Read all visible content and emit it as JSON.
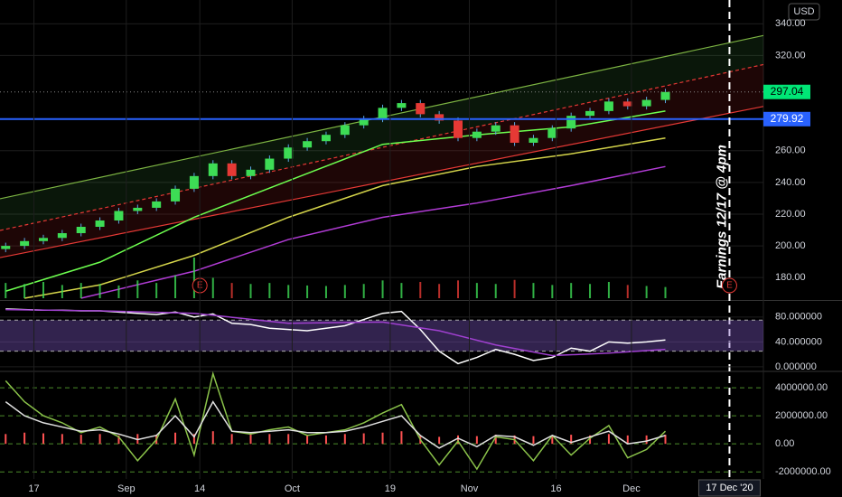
{
  "chart_data": [
    {
      "type": "candlestick",
      "currency": "USD",
      "xlim": [
        -0.3,
        40.2
      ],
      "ylim": [
        167,
        355
      ],
      "yticks": [
        {
          "value": 340,
          "label": "340.00"
        },
        {
          "value": 320,
          "label": "320.00"
        },
        {
          "value": 260,
          "label": "260.00"
        },
        {
          "value": 240,
          "label": "240.00"
        },
        {
          "value": 220,
          "label": "220.00"
        },
        {
          "value": 200,
          "label": "200.00"
        },
        {
          "value": 180,
          "label": "180.00"
        }
      ],
      "x": [
        0,
        1,
        2,
        3,
        4,
        5,
        6,
        7,
        8,
        9,
        10,
        11,
        12,
        13,
        14,
        15,
        16,
        17,
        18,
        19,
        20,
        21,
        22,
        23,
        24,
        25,
        26,
        27,
        28,
        29,
        30,
        31,
        32,
        33,
        34,
        35
      ],
      "open": [
        198,
        200,
        203,
        205,
        208,
        212,
        216,
        222,
        224,
        228,
        236,
        244,
        252,
        244,
        248,
        255,
        262,
        266,
        270,
        276,
        280,
        287,
        290,
        283,
        279,
        268,
        272,
        276,
        265,
        268,
        274,
        282,
        285,
        291,
        288,
        292
      ],
      "high": [
        202,
        205,
        207,
        210,
        214,
        218,
        224,
        226,
        230,
        238,
        246,
        254,
        254,
        250,
        257,
        264,
        268,
        272,
        278,
        282,
        289,
        292,
        292,
        285,
        281,
        274,
        278,
        278,
        270,
        276,
        284,
        287,
        293,
        293,
        294,
        299
      ],
      "low": [
        196,
        198,
        201,
        203,
        206,
        210,
        214,
        220,
        222,
        226,
        234,
        242,
        242,
        242,
        246,
        253,
        260,
        264,
        268,
        274,
        278,
        285,
        281,
        277,
        266,
        266,
        270,
        263,
        263,
        266,
        272,
        280,
        283,
        286,
        286,
        290
      ],
      "close": [
        200,
        203,
        205,
        208,
        212,
        216,
        222,
        224,
        228,
        236,
        244,
        252,
        244,
        248,
        255,
        262,
        266,
        270,
        276,
        280,
        287,
        290,
        283,
        279,
        268,
        272,
        276,
        265,
        268,
        274,
        282,
        285,
        291,
        288,
        292,
        297.04
      ],
      "volume": [
        30,
        28,
        32,
        26,
        30,
        28,
        25,
        35,
        30,
        45,
        80,
        40,
        30,
        28,
        30,
        26,
        25,
        24,
        26,
        28,
        35,
        30,
        32,
        28,
        35,
        30,
        28,
        36,
        30,
        26,
        30,
        28,
        32,
        26,
        24,
        22
      ],
      "up_color": "#3ddc55",
      "down_color": "#e53935",
      "wick_color": "#5aa9e6",
      "channel": {
        "upper": [
          229.7,
          332.6
        ],
        "middle": [
          209.7,
          314.3
        ],
        "lower": [
          192.6,
          287.9
        ]
      },
      "overlays": [
        {
          "color": "#6dff4f",
          "x": [
            0,
            5,
            10,
            15,
            20,
            25,
            30,
            35
          ],
          "values": [
            171.4,
            189.7,
            218,
            241,
            264,
            270,
            275,
            285
          ]
        },
        {
          "color": "#d4d44a",
          "x": [
            1,
            5,
            10,
            15,
            20,
            25,
            30,
            35
          ],
          "values": [
            167,
            175.4,
            194,
            218,
            238,
            250,
            258,
            268
          ]
        },
        {
          "color": "#b23cd6",
          "x": [
            4,
            10,
            15,
            20,
            25,
            30,
            35
          ],
          "values": [
            167,
            184,
            204,
            218,
            227,
            238,
            250
          ]
        }
      ],
      "price_line": 279.92,
      "price_line_color": "#2962ff",
      "last_color": "#00e676",
      "event_x": 38.4,
      "annotation": "Earnings 12/17 @ 4pm",
      "earnings": [
        {
          "x": 10.3,
          "label": "E"
        },
        {
          "x": 38.4,
          "label": "E"
        }
      ]
    },
    {
      "type": "line",
      "xlim": [
        -0.3,
        40.2
      ],
      "ylim": [
        -6,
        103
      ],
      "yticks": [
        {
          "value": 80,
          "label": "80.000000"
        },
        {
          "value": 40,
          "label": "40.000000"
        },
        {
          "value": 0,
          "label": "0.000000"
        }
      ],
      "band": [
        25,
        75
      ],
      "series": [
        {
          "color": "#ffffff",
          "x": [
            0,
            1,
            2,
            3,
            4,
            5,
            6,
            7,
            8,
            9,
            10,
            11,
            12,
            13,
            14,
            15,
            16,
            17,
            18,
            19,
            20,
            21,
            22,
            23,
            24,
            25,
            26,
            27,
            28,
            29,
            30,
            31,
            32,
            33,
            34,
            35
          ],
          "values": [
            93,
            92,
            91,
            91,
            90,
            90,
            88,
            86,
            84,
            88,
            80,
            85,
            70,
            68,
            62,
            60,
            58,
            62,
            66,
            76,
            86,
            89,
            60,
            25,
            5,
            15,
            28,
            20,
            10,
            15,
            30,
            25,
            40,
            38,
            40,
            43
          ]
        },
        {
          "color": "#a040d0",
          "x": [
            0,
            5,
            10,
            15,
            20,
            23,
            26,
            29,
            32,
            35
          ],
          "values": [
            92,
            90,
            86,
            70,
            72,
            58,
            35,
            18,
            22,
            28
          ]
        }
      ]
    },
    {
      "type": "line",
      "xlim": [
        -0.3,
        40.2
      ],
      "ylim": [
        -2500000,
        5100000
      ],
      "yticks": [
        {
          "value": 4000000,
          "label": "4000000.00"
        },
        {
          "value": 2000000,
          "label": "2000000.00"
        },
        {
          "value": 0,
          "label": "0.00"
        },
        {
          "value": -2000000,
          "label": "-2000000.00"
        }
      ],
      "xticks": [
        {
          "value": 1.5,
          "label": "17"
        },
        {
          "value": 6.4,
          "label": "Sep"
        },
        {
          "value": 10.3,
          "label": "14"
        },
        {
          "value": 15.2,
          "label": "Oct"
        },
        {
          "value": 20.4,
          "label": "19"
        },
        {
          "value": 24.6,
          "label": "Nov"
        },
        {
          "value": 29.2,
          "label": "16"
        },
        {
          "value": 33.2,
          "label": "Dec"
        }
      ],
      "cursor": {
        "value": 38.4,
        "label": "17 Dec '20"
      },
      "histogram": {
        "color": "#ff5252",
        "values": [
          700000,
          800000,
          750000,
          700000,
          650000,
          700000,
          600000,
          700000,
          650000,
          800000,
          700000,
          900000,
          700000,
          650000,
          700000,
          700000,
          650000,
          600000,
          700000,
          750000,
          800000,
          900000,
          600000,
          500000,
          600000,
          550000,
          650000,
          600000,
          550000,
          600000,
          650000,
          600000,
          700000,
          600000,
          600000,
          650000
        ]
      },
      "series": [
        {
          "color": "#8bc34a",
          "x": [
            0,
            1,
            2,
            3,
            4,
            5,
            6,
            7,
            8,
            9,
            10,
            11,
            12,
            13,
            14,
            15,
            16,
            17,
            18,
            19,
            20,
            21,
            22,
            23,
            24,
            25,
            26,
            27,
            28,
            29,
            30,
            31,
            32,
            33,
            34,
            35
          ],
          "values": [
            4500000,
            3000000,
            2000000,
            1500000,
            800000,
            1200000,
            500000,
            -1200000,
            300000,
            3200000,
            -800000,
            5000000,
            900000,
            700000,
            1000000,
            1200000,
            600000,
            800000,
            1000000,
            1500000,
            2200000,
            2800000,
            300000,
            -1500000,
            200000,
            -1800000,
            500000,
            300000,
            -1200000,
            600000,
            -800000,
            400000,
            1300000,
            -1000000,
            -400000,
            900000
          ]
        },
        {
          "color": "#e0e0e0",
          "x": [
            0,
            1,
            2,
            3,
            4,
            5,
            6,
            7,
            8,
            9,
            10,
            11,
            12,
            13,
            14,
            15,
            16,
            17,
            18,
            19,
            20,
            21,
            22,
            23,
            24,
            25,
            26,
            27,
            28,
            29,
            30,
            31,
            32,
            33,
            34,
            35
          ],
          "values": [
            3000000,
            2000000,
            1500000,
            1200000,
            900000,
            1000000,
            700000,
            300000,
            600000,
            2000000,
            500000,
            3000000,
            900000,
            800000,
            900000,
            1000000,
            800000,
            800000,
            900000,
            1200000,
            1600000,
            2000000,
            600000,
            -300000,
            400000,
            -200000,
            600000,
            500000,
            -100000,
            600000,
            100000,
            500000,
            900000,
            0,
            200000,
            600000
          ]
        }
      ]
    }
  ]
}
